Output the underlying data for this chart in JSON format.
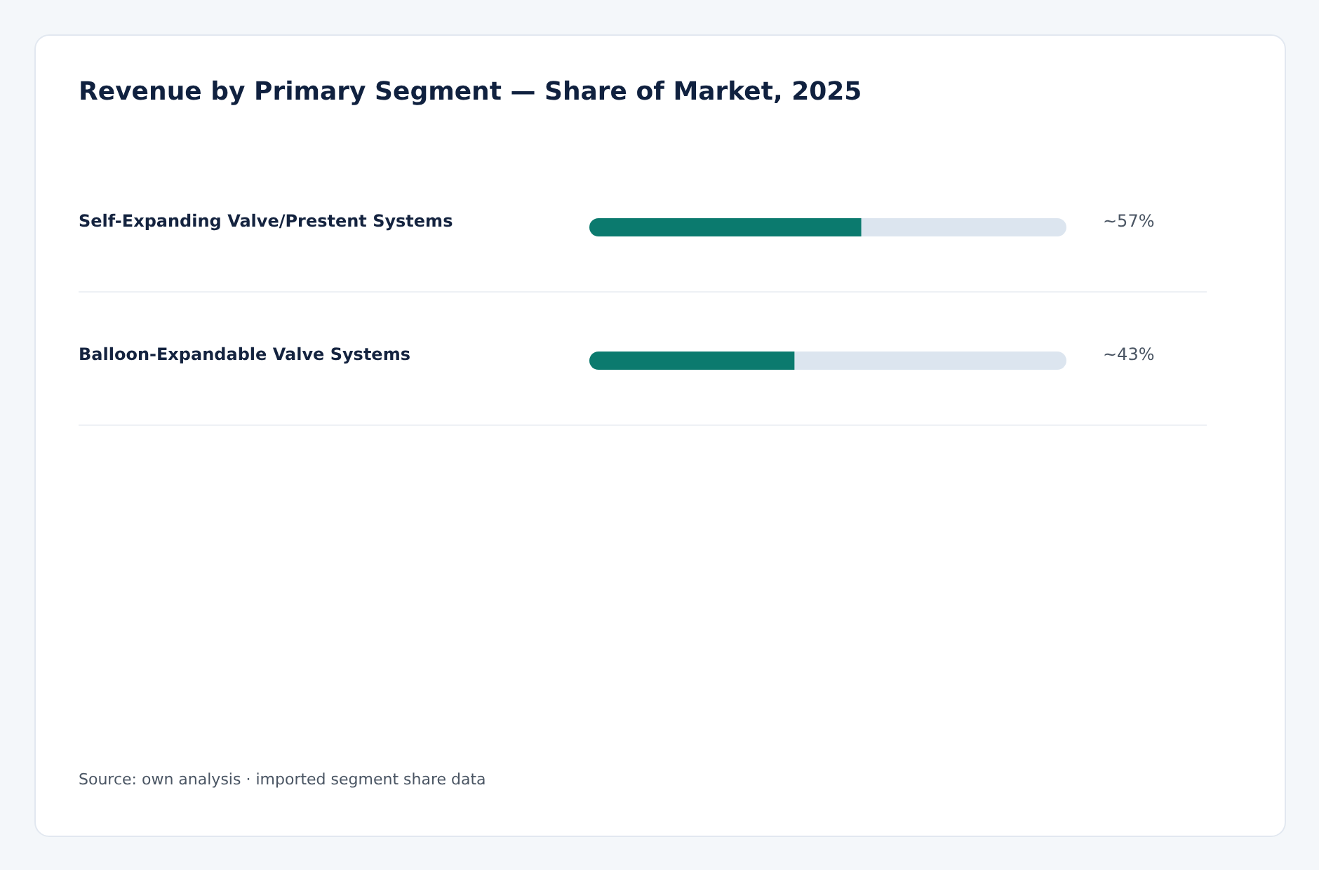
{
  "chart_data": {
    "type": "bar",
    "orientation": "horizontal",
    "title": "Revenue by Primary Segment — Share of Market, 2025",
    "categories": [
      "Self-Expanding Valve/Prestent Systems",
      "Balloon-Expandable Valve Systems"
    ],
    "values": [
      57,
      43
    ],
    "value_labels": [
      "~57%",
      "~43%"
    ],
    "color": "#0b7a6e",
    "xlim": [
      0,
      100
    ],
    "tick_labels": "y",
    "grid": "y",
    "annotations": [
      "Source: own analysis · imported segment share data"
    ]
  }
}
